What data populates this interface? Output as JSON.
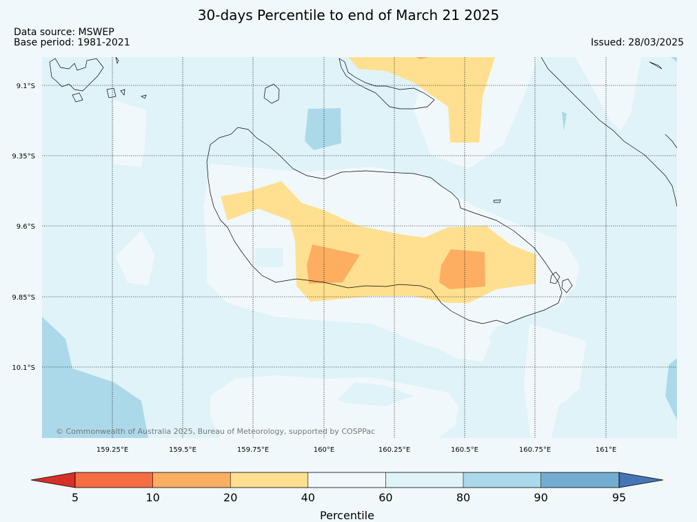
{
  "title": "30-days Percentile to end of March 21 2025",
  "data_source": "Data source: MSWEP",
  "base_period": "Base period: 1981-2021",
  "issued": "Issued: 28/03/2025",
  "copyright": "© Commonwealth of Australia 2025, Bureau of Meteorology, supported by COSPPac",
  "lat_labels": [
    "9.1°S",
    "9.35°S",
    "9.6°S",
    "9.85°S",
    "10.1°S"
  ],
  "lon_labels": [
    "159.25°E",
    "159.5°E",
    "159.75°E",
    "160°E",
    "160.25°E",
    "160.5°E",
    "160.75°E",
    "161°E"
  ],
  "colorbar": {
    "label": "Percentile",
    "ticks": [
      "5",
      "10",
      "20",
      "40",
      "60",
      "80",
      "90",
      "95"
    ],
    "colors": {
      "below_5": "#d73027",
      "p5_10": "#f46d43",
      "p10_20": "#fdae61",
      "p20_40": "#fee090",
      "p40_60": "#f1f8fb",
      "p60_80": "#e0f3f8",
      "p80_90": "#abd9e9",
      "p90_95": "#74add1",
      "above_95": "#4575b4"
    }
  }
}
